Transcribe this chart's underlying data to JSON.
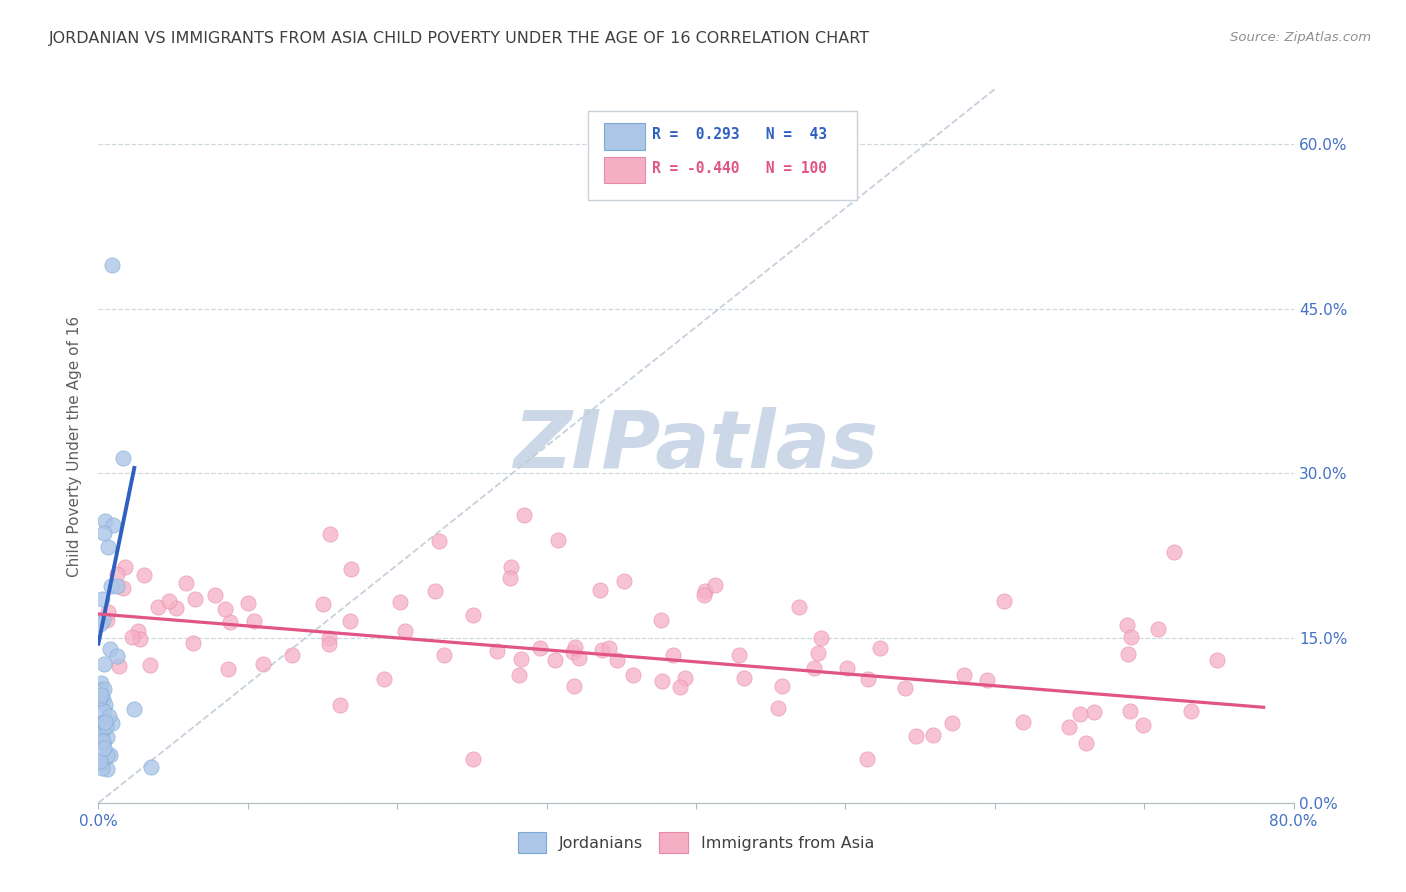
{
  "title": "JORDANIAN VS IMMIGRANTS FROM ASIA CHILD POVERTY UNDER THE AGE OF 16 CORRELATION CHART",
  "source": "Source: ZipAtlas.com",
  "ylabel": "Child Poverty Under the Age of 16",
  "xlim": [
    0.0,
    0.8
  ],
  "ylim": [
    0.0,
    0.65
  ],
  "yticks": [
    0.0,
    0.15,
    0.3,
    0.45,
    0.6
  ],
  "xticks": [
    0.0,
    0.1,
    0.2,
    0.3,
    0.4,
    0.5,
    0.6,
    0.7,
    0.8
  ],
  "blue_R": 0.293,
  "blue_N": 43,
  "pink_R": -0.44,
  "pink_N": 100,
  "blue_color": "#adc6e8",
  "pink_color": "#f5afc5",
  "blue_edge_color": "#7aaad4",
  "pink_edge_color": "#e888a8",
  "blue_line_color": "#3060c0",
  "pink_line_color": "#e05585",
  "diag_color": "#c0ccd8",
  "watermark_text": "ZIPatlas",
  "watermark_color": "#ccd8e8",
  "background_color": "#ffffff",
  "grid_color": "#c8d4dc",
  "title_color": "#404040",
  "axis_tick_color": "#4472c4",
  "ylabel_color": "#606060",
  "legend_text_color": "#404040",
  "legend_box_edge": "#c8d0d8",
  "blue_line_x": [
    0.0,
    0.024
  ],
  "blue_line_y": [
    0.145,
    0.305
  ],
  "pink_line_x": [
    0.0,
    0.78
  ],
  "pink_line_y": [
    0.172,
    0.087
  ],
  "diag_line_x": [
    0.0,
    0.6
  ],
  "diag_line_y": [
    0.0,
    0.65
  ]
}
